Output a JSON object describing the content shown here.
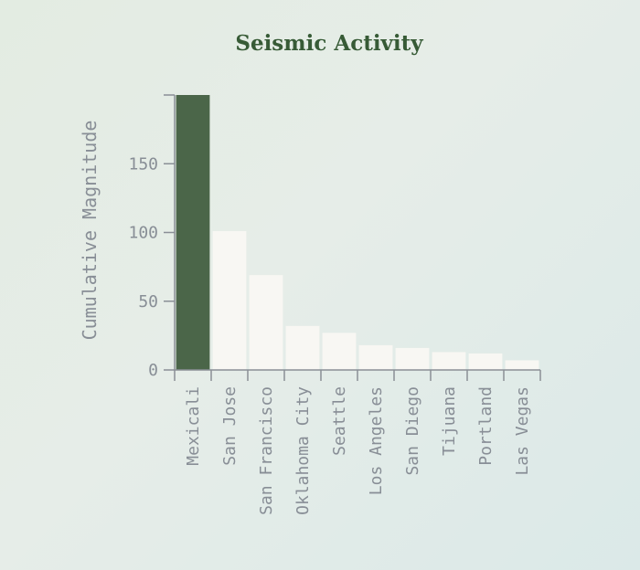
{
  "chart_data": {
    "type": "bar",
    "title": "Seismic Activity",
    "xlabel": "",
    "ylabel": "Cumulative Magnitude",
    "categories": [
      "Mexicali",
      "San Jose",
      "San Francisco",
      "Oklahoma City",
      "Seattle",
      "Los Angeles",
      "San Diego",
      "Tijuana",
      "Portland",
      "Las Vegas"
    ],
    "values": [
      200,
      101,
      69,
      32,
      27,
      18,
      16,
      13,
      12,
      7
    ],
    "highlighted_category": "Mexicali",
    "ylim": [
      0,
      200
    ],
    "yticks": [
      0,
      50,
      100,
      150
    ],
    "grid": false,
    "legend": "none"
  },
  "colors": {
    "highlight_bar": "#4b6649",
    "bar": "#f8f7f3",
    "axis": "#8a8f96",
    "text": "#888e96",
    "title": "#375b36"
  }
}
